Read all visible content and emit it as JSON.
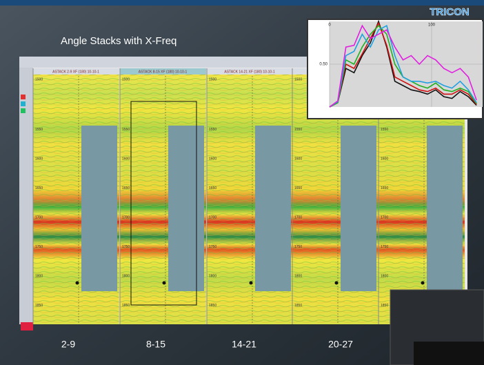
{
  "title": "Angle Stacks with X-Freq",
  "logo": "TRICON",
  "headers": [
    "ASTACK 2-9 XF (180) 10-10-1",
    "ASTACK 8-15 XF (180) 10-10-1",
    "ASTACK 14-21 XF (180) 10-10-1"
  ],
  "panel_labels": [
    "2-9",
    "8-15",
    "14-21",
    "20-27"
  ],
  "depth_labels": [
    1500,
    1550,
    1600,
    1650,
    1700,
    1750,
    1800,
    1850
  ],
  "inset_chart": {
    "type": "line",
    "x": [
      0,
      8,
      16,
      24,
      32,
      40,
      48,
      56,
      64,
      72,
      80,
      88,
      96,
      104,
      112,
      120,
      128,
      136,
      144
    ],
    "xlim": [
      0,
      150
    ],
    "xticks": [
      0,
      100
    ],
    "ylim": [
      0,
      1
    ],
    "yticks": [
      {
        "value": 0.5,
        "label": "0.50"
      }
    ],
    "series": [
      {
        "color": "#111111",
        "values": [
          0,
          0.05,
          0.45,
          0.4,
          0.6,
          0.75,
          1.0,
          0.7,
          0.3,
          0.25,
          0.2,
          0.18,
          0.15,
          0.2,
          0.12,
          0.1,
          0.18,
          0.12,
          0.02
        ]
      },
      {
        "color": "#d01010",
        "values": [
          0,
          0.05,
          0.5,
          0.45,
          0.62,
          0.8,
          0.98,
          0.72,
          0.35,
          0.3,
          0.25,
          0.2,
          0.18,
          0.22,
          0.15,
          0.15,
          0.2,
          0.15,
          0.03
        ]
      },
      {
        "color": "#20b020",
        "values": [
          0,
          0.05,
          0.55,
          0.5,
          0.7,
          0.85,
          0.95,
          0.85,
          0.5,
          0.35,
          0.3,
          0.25,
          0.22,
          0.28,
          0.2,
          0.18,
          0.22,
          0.18,
          0.04
        ]
      },
      {
        "color": "#20a0e0",
        "values": [
          0,
          0.06,
          0.6,
          0.65,
          0.85,
          0.7,
          0.9,
          0.95,
          0.6,
          0.35,
          0.3,
          0.3,
          0.28,
          0.3,
          0.25,
          0.22,
          0.3,
          0.2,
          0.05
        ]
      },
      {
        "color": "#e020e0",
        "values": [
          0,
          0.07,
          0.7,
          0.72,
          0.95,
          0.8,
          0.85,
          0.9,
          0.7,
          0.55,
          0.6,
          0.5,
          0.6,
          0.55,
          0.45,
          0.4,
          0.45,
          0.35,
          0.08
        ]
      }
    ]
  }
}
